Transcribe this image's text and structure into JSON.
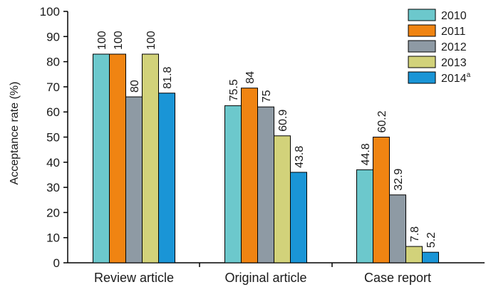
{
  "chart_data": {
    "type": "bar",
    "title": "",
    "xlabel": "",
    "ylabel": "Acceptance rate (%)",
    "ylim": [
      0,
      100
    ],
    "yticks": [
      0,
      10,
      20,
      30,
      40,
      50,
      60,
      70,
      80,
      90,
      100
    ],
    "categories": [
      "Review article",
      "Original article",
      "Case report"
    ],
    "grid": false,
    "legend_position": "top-right",
    "series": [
      {
        "name": "2010",
        "color": "#6cc8cc",
        "values": [
          83,
          62.5,
          37
        ],
        "labels": [
          "100",
          "75.5",
          "44.8"
        ]
      },
      {
        "name": "2011",
        "color": "#f08412",
        "values": [
          83,
          69.5,
          50
        ],
        "labels": [
          "100",
          "84",
          "60.2"
        ]
      },
      {
        "name": "2012",
        "color": "#8e9aa4",
        "values": [
          66,
          62,
          27
        ],
        "labels": [
          "80",
          "75",
          "32.9"
        ]
      },
      {
        "name": "2013",
        "color": "#d2d27a",
        "values": [
          83,
          50.5,
          6.5
        ],
        "labels": [
          "100",
          "60.9",
          "7.8"
        ]
      },
      {
        "name": "2014",
        "name_superscript": "a",
        "color": "#1a95d6",
        "values": [
          67.5,
          36,
          4.2
        ],
        "labels": [
          "81.8",
          "43.8",
          "5.2"
        ]
      }
    ]
  }
}
